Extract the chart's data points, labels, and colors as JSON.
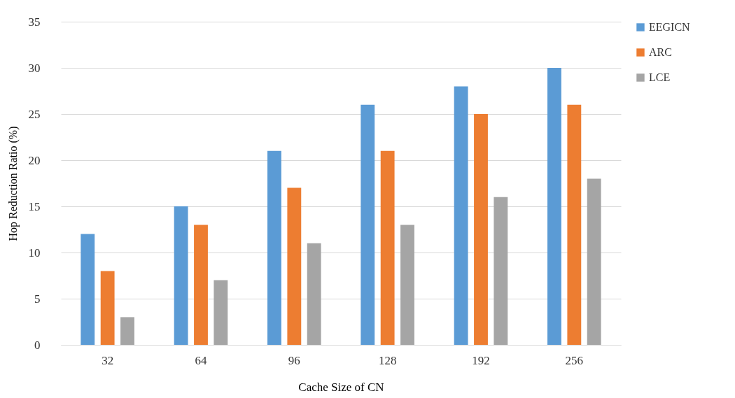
{
  "chart_data": {
    "type": "bar",
    "xlabel": "Cache Size of CN",
    "ylabel": "Hop Reduction Ratio (%)",
    "categories": [
      "32",
      "64",
      "96",
      "128",
      "192",
      "256"
    ],
    "series": [
      {
        "name": "EEGICN",
        "color": "#5b9bd5",
        "values": [
          12,
          15,
          21,
          26,
          28,
          30
        ]
      },
      {
        "name": "ARC",
        "color": "#ed7d31",
        "values": [
          8,
          13,
          17,
          21,
          25,
          26
        ]
      },
      {
        "name": "LCE",
        "color": "#a5a5a5",
        "values": [
          3,
          7,
          11,
          13,
          16,
          18
        ]
      }
    ],
    "ylim": [
      0,
      35
    ],
    "yticks": [
      0,
      5,
      10,
      15,
      20,
      25,
      30,
      35
    ],
    "grid": "y",
    "legend": "right"
  }
}
